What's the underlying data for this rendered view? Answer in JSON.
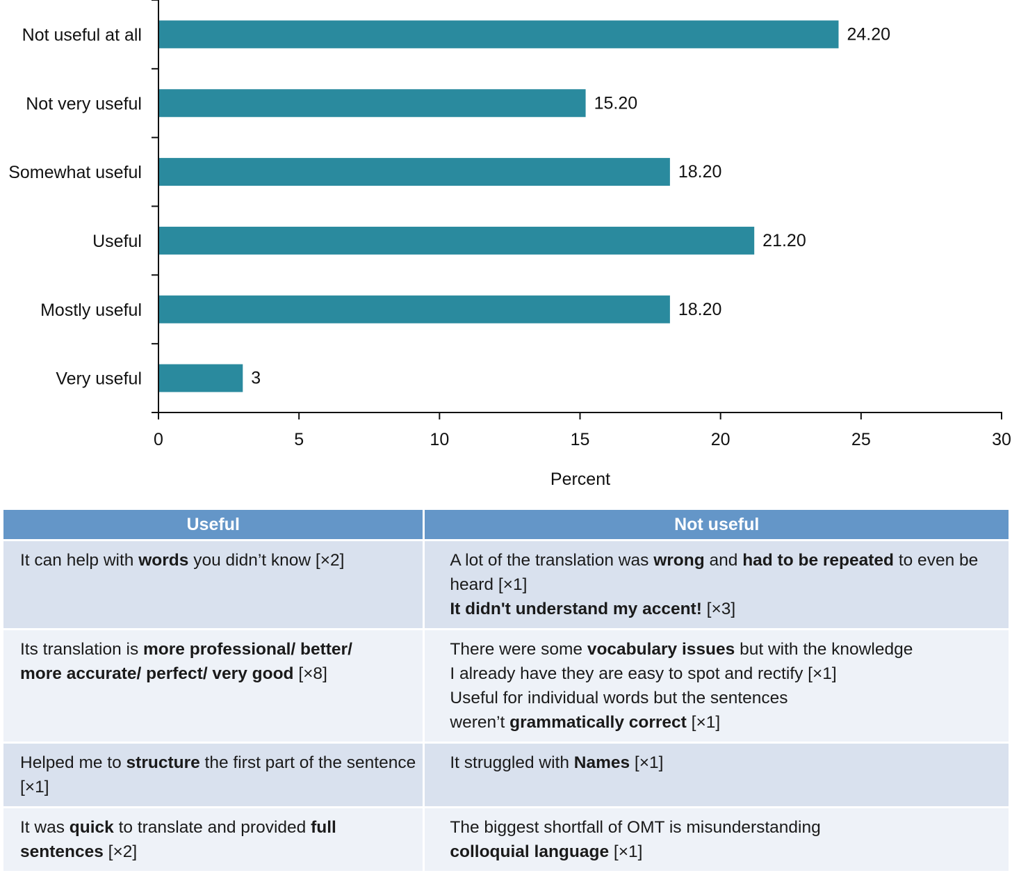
{
  "chart_data": {
    "type": "bar",
    "orientation": "horizontal",
    "categories": [
      "Not useful at all",
      "Not very useful",
      "Somewhat useful",
      "Useful",
      "Mostly useful",
      "Very useful"
    ],
    "values": [
      24.2,
      15.2,
      18.2,
      21.2,
      18.2,
      3
    ],
    "value_labels": [
      "24.20",
      "15.20",
      "18.20",
      "21.20",
      "18.20",
      "3"
    ],
    "xlabel": "Percent",
    "ylabel": "",
    "xlim": [
      0,
      30
    ],
    "xticks": [
      0,
      5,
      10,
      15,
      20,
      25,
      30
    ],
    "bar_color": "#2a8a9e",
    "grid": false
  },
  "table": {
    "headers": [
      "Useful",
      "Not useful"
    ],
    "rows": [
      [
        [
          [
            "It can help with ",
            0
          ],
          [
            "words",
            1
          ],
          [
            " you didn’t know [×2]",
            0
          ]
        ],
        [
          [
            "A lot of the translation was ",
            0
          ],
          [
            "wrong",
            1
          ],
          [
            " and ",
            0
          ],
          [
            "had to be repeated",
            1
          ],
          [
            " to even be heard [×1]",
            0
          ],
          [
            "\n",
            0
          ],
          [
            "It didn't understand my accent!",
            1
          ],
          [
            " [×3]",
            0
          ]
        ]
      ],
      [
        [
          [
            "Its translation is ",
            0
          ],
          [
            "more professional/ better/\nmore accurate/ perfect/ very good",
            1
          ],
          [
            " [×8]",
            0
          ]
        ],
        [
          [
            "There were some ",
            0
          ],
          [
            "vocabulary issues",
            1
          ],
          [
            " but with the knowledge\nI already have they are easy to spot and rectify [×1]\nUseful for individual words but the sentences\nweren’t ",
            0
          ],
          [
            "grammatically correct",
            1
          ],
          [
            " [×1]",
            0
          ]
        ]
      ],
      [
        [
          [
            "Helped me to ",
            0
          ],
          [
            "structure",
            1
          ],
          [
            " the first part of the sentence [×1]",
            0
          ]
        ],
        [
          [
            "It struggled with ",
            0
          ],
          [
            "Names",
            1
          ],
          [
            " [×1]",
            0
          ]
        ]
      ],
      [
        [
          [
            "It was ",
            0
          ],
          [
            "quick",
            1
          ],
          [
            " to translate and provided ",
            0
          ],
          [
            "full sentences",
            1
          ],
          [
            " [×2]",
            0
          ]
        ],
        [
          [
            "The biggest shortfall of OMT is misunderstanding\n",
            0
          ],
          [
            "colloquial language",
            1
          ],
          [
            " [×1]",
            0
          ]
        ]
      ]
    ]
  }
}
